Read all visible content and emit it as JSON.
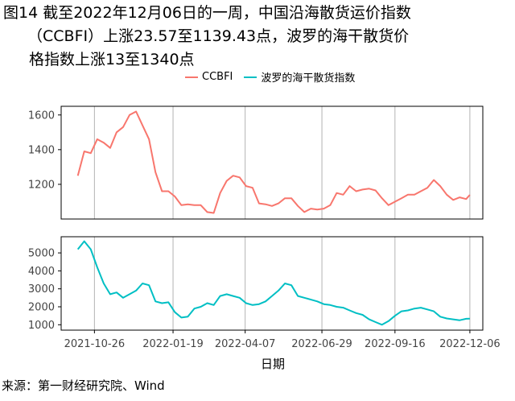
{
  "title": {
    "line1": "图14  截至2022年12月06日的一周，中国沿海散货运价指数",
    "line2": "（CCBFI）上涨23.57至1139.43点，波罗的海干散货价",
    "line3": "格指数上涨13至1340点"
  },
  "source": "来源：第一财经研究院、Wind",
  "colors": {
    "ccbfi": "#f8766d",
    "bdi": "#00bfc4",
    "grid": "#b3b3b3",
    "axis": "#000000"
  },
  "chart_data": [
    {
      "type": "line",
      "series": [
        {
          "name": "CCBFI",
          "x": [
            "2021-10-08",
            "2021-10-15",
            "2021-10-22",
            "2021-10-29",
            "2021-11-05",
            "2021-11-12",
            "2021-11-19",
            "2021-11-26",
            "2021-12-03",
            "2021-12-10",
            "2021-12-17",
            "2021-12-24",
            "2021-12-31",
            "2022-01-07",
            "2022-01-14",
            "2022-01-21",
            "2022-01-28",
            "2022-02-04",
            "2022-02-11",
            "2022-02-18",
            "2022-02-25",
            "2022-03-04",
            "2022-03-11",
            "2022-03-18",
            "2022-03-25",
            "2022-04-01",
            "2022-04-08",
            "2022-04-15",
            "2022-04-22",
            "2022-04-29",
            "2022-05-06",
            "2022-05-13",
            "2022-05-20",
            "2022-05-27",
            "2022-06-03",
            "2022-06-10",
            "2022-06-17",
            "2022-06-24",
            "2022-07-01",
            "2022-07-08",
            "2022-07-15",
            "2022-07-22",
            "2022-07-29",
            "2022-08-05",
            "2022-08-12",
            "2022-08-19",
            "2022-08-26",
            "2022-09-02",
            "2022-09-09",
            "2022-09-16",
            "2022-09-23",
            "2022-09-30",
            "2022-10-07",
            "2022-10-14",
            "2022-10-21",
            "2022-10-28",
            "2022-11-04",
            "2022-11-11",
            "2022-11-18",
            "2022-11-25",
            "2022-12-02",
            "2022-12-06"
          ],
          "values": [
            1250,
            1390,
            1380,
            1460,
            1440,
            1410,
            1500,
            1530,
            1600,
            1620,
            1540,
            1460,
            1270,
            1160,
            1160,
            1130,
            1080,
            1085,
            1080,
            1080,
            1040,
            1035,
            1150,
            1220,
            1250,
            1240,
            1190,
            1180,
            1090,
            1085,
            1075,
            1090,
            1120,
            1120,
            1075,
            1040,
            1060,
            1055,
            1060,
            1080,
            1150,
            1140,
            1190,
            1160,
            1170,
            1175,
            1165,
            1120,
            1080,
            1100,
            1120,
            1140,
            1140,
            1160,
            1180,
            1225,
            1190,
            1140,
            1110,
            1125,
            1115,
            1139.43
          ]
        }
      ],
      "ylim": [
        1000,
        1650
      ],
      "yticks": [
        1200,
        1400,
        1600
      ]
    },
    {
      "type": "line",
      "series": [
        {
          "name": "波罗的海干散货指数",
          "x": [
            "2021-10-08",
            "2021-10-15",
            "2021-10-22",
            "2021-10-29",
            "2021-11-05",
            "2021-11-12",
            "2021-11-19",
            "2021-11-26",
            "2021-12-03",
            "2021-12-10",
            "2021-12-17",
            "2021-12-24",
            "2021-12-31",
            "2022-01-07",
            "2022-01-14",
            "2022-01-21",
            "2022-01-28",
            "2022-02-04",
            "2022-02-11",
            "2022-02-18",
            "2022-02-25",
            "2022-03-04",
            "2022-03-11",
            "2022-03-18",
            "2022-03-25",
            "2022-04-01",
            "2022-04-08",
            "2022-04-15",
            "2022-04-22",
            "2022-04-29",
            "2022-05-06",
            "2022-05-13",
            "2022-05-20",
            "2022-05-27",
            "2022-06-03",
            "2022-06-10",
            "2022-06-17",
            "2022-06-24",
            "2022-07-01",
            "2022-07-08",
            "2022-07-15",
            "2022-07-22",
            "2022-07-29",
            "2022-08-05",
            "2022-08-12",
            "2022-08-19",
            "2022-08-26",
            "2022-09-02",
            "2022-09-09",
            "2022-09-16",
            "2022-09-23",
            "2022-09-30",
            "2022-10-07",
            "2022-10-14",
            "2022-10-21",
            "2022-10-28",
            "2022-11-04",
            "2022-11-11",
            "2022-11-18",
            "2022-11-25",
            "2022-12-02",
            "2022-12-06"
          ],
          "values": [
            5200,
            5650,
            5200,
            4200,
            3300,
            2700,
            2800,
            2500,
            2700,
            2900,
            3300,
            3200,
            2300,
            2200,
            2250,
            1700,
            1400,
            1450,
            1900,
            2000,
            2200,
            2100,
            2600,
            2700,
            2600,
            2500,
            2200,
            2100,
            2150,
            2300,
            2600,
            2900,
            3300,
            3200,
            2600,
            2500,
            2400,
            2300,
            2150,
            2100,
            2000,
            1950,
            1800,
            1650,
            1550,
            1300,
            1150,
            1000,
            1200,
            1500,
            1750,
            1800,
            1900,
            1950,
            1850,
            1750,
            1450,
            1350,
            1300,
            1250,
            1330,
            1340
          ]
        }
      ],
      "ylim": [
        700,
        5900
      ],
      "yticks": [
        1000,
        2000,
        3000,
        4000,
        5000
      ]
    }
  ],
  "x_axis": {
    "label": "日期",
    "range": [
      "2021-09-20",
      "2022-12-20"
    ],
    "ticks": [
      "2021-10-26",
      "2022-01-19",
      "2022-04-07",
      "2022-06-29",
      "2022-09-16",
      "2022-12-06"
    ]
  }
}
